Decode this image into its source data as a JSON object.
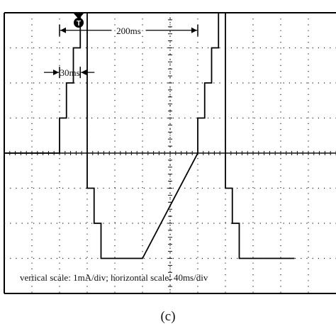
{
  "chart_data": {
    "type": "line",
    "x_unit": "ms",
    "y_unit": "mA",
    "x": [
      -80,
      0,
      0,
      10,
      10,
      20,
      20,
      30,
      30,
      40,
      40,
      50,
      50,
      60,
      60,
      120,
      200,
      200,
      210,
      210,
      220,
      220,
      230,
      230,
      240,
      240,
      250,
      250,
      260,
      260,
      340
    ],
    "y": [
      0,
      0,
      1,
      1,
      2,
      2,
      3,
      3,
      4,
      4,
      -1,
      -1,
      -2,
      -2,
      -3,
      -3,
      0,
      1,
      1,
      2,
      2,
      3,
      3,
      4,
      4,
      -1,
      -1,
      -2,
      -2,
      -3,
      -3
    ],
    "xlim": [
      -80,
      400
    ],
    "ylim": [
      -4,
      4
    ],
    "grid": true,
    "trigger_marker": "T",
    "annotations": [
      {
        "text": "200ms",
        "from": 0,
        "to": 200
      },
      {
        "text": "30ms",
        "from": 0,
        "to": 30
      }
    ],
    "scale_note": "vertical scale: 1mA/div; horizontal scale: 40ms/div"
  },
  "caption": "(c)"
}
